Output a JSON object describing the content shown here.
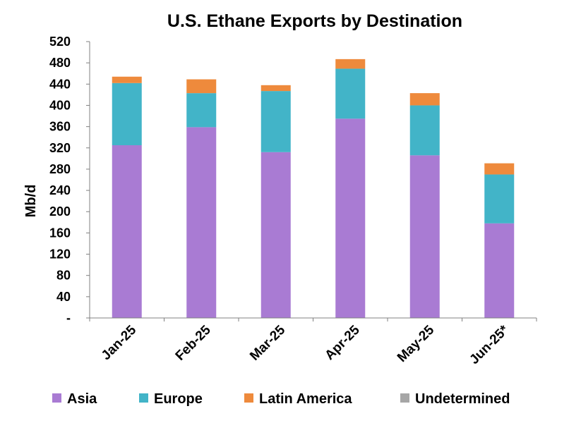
{
  "chart_data": {
    "type": "bar",
    "stacked": true,
    "title": "U.S. Ethane Exports by Destination",
    "ylabel": "Mb/d",
    "xlabel": "",
    "ylim": [
      0,
      520
    ],
    "yticks": [
      0,
      40,
      80,
      120,
      160,
      200,
      240,
      280,
      320,
      360,
      400,
      440,
      480,
      520
    ],
    "ytick_labels": [
      "-",
      "40",
      "80",
      "120",
      "160",
      "200",
      "240",
      "280",
      "320",
      "360",
      "400",
      "440",
      "480",
      "520"
    ],
    "categories": [
      "Jan-25",
      "Feb-25",
      "Mar-25",
      "Apr-25",
      "May-25",
      "Jun-25*"
    ],
    "series": [
      {
        "name": "Asia",
        "color": "#A97BD3",
        "values": [
          325,
          359,
          312,
          375,
          306,
          178
        ]
      },
      {
        "name": "Europe",
        "color": "#42B4C8",
        "values": [
          117,
          64,
          115,
          94,
          94,
          92
        ]
      },
      {
        "name": "Latin America",
        "color": "#EE8A3C",
        "values": [
          12,
          26,
          11,
          18,
          23,
          21
        ]
      },
      {
        "name": "Undetermined",
        "color": "#A6A6A6",
        "values": [
          0,
          0,
          0,
          0,
          0,
          0
        ]
      }
    ],
    "grid": false,
    "legend_position": "bottom"
  }
}
